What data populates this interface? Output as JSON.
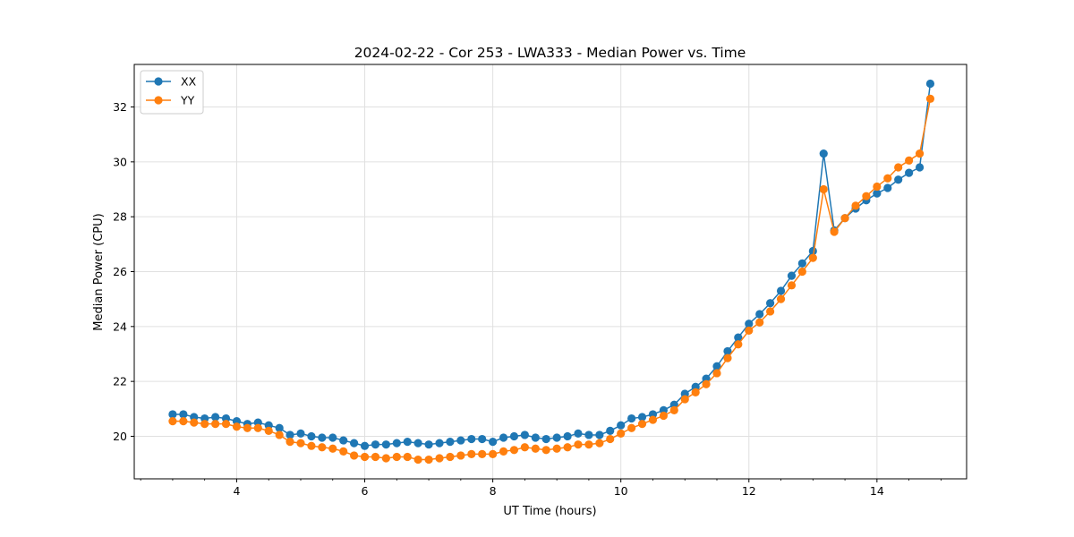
{
  "chart_data": {
    "type": "line",
    "title": "2024-02-22 - Cor 253 - LWA333 - Median Power vs. Time",
    "xlabel": "UT Time (hours)",
    "ylabel": "Median Power (CPU)",
    "xlim": [
      2.4,
      15.4
    ],
    "ylim": [
      18.45,
      33.55
    ],
    "xticks": [
      4,
      6,
      8,
      10,
      12,
      14
    ],
    "yticks": [
      20,
      22,
      24,
      26,
      28,
      30,
      32
    ],
    "grid": true,
    "legend_position": "top-left",
    "x": [
      3.0,
      3.167,
      3.333,
      3.5,
      3.667,
      3.833,
      4.0,
      4.167,
      4.333,
      4.5,
      4.667,
      4.833,
      5.0,
      5.167,
      5.333,
      5.5,
      5.667,
      5.833,
      6.0,
      6.167,
      6.333,
      6.5,
      6.667,
      6.833,
      7.0,
      7.167,
      7.333,
      7.5,
      7.667,
      7.833,
      8.0,
      8.167,
      8.333,
      8.5,
      8.667,
      8.833,
      9.0,
      9.167,
      9.333,
      9.5,
      9.667,
      9.833,
      10.0,
      10.167,
      10.333,
      10.5,
      10.667,
      10.833,
      11.0,
      11.167,
      11.333,
      11.5,
      11.667,
      11.833,
      12.0,
      12.167,
      12.333,
      12.5,
      12.667,
      12.833,
      13.0,
      13.167,
      13.333,
      13.5,
      13.667,
      13.833,
      14.0,
      14.167,
      14.333,
      14.5,
      14.667,
      14.833
    ],
    "series": [
      {
        "name": "XX",
        "color": "#1f77b4",
        "values": [
          20.8,
          20.8,
          20.7,
          20.65,
          20.7,
          20.65,
          20.55,
          20.45,
          20.5,
          20.4,
          20.3,
          20.05,
          20.1,
          20.0,
          19.95,
          19.95,
          19.85,
          19.75,
          19.65,
          19.7,
          19.7,
          19.75,
          19.8,
          19.75,
          19.7,
          19.75,
          19.8,
          19.85,
          19.9,
          19.9,
          19.8,
          19.95,
          20.0,
          20.05,
          19.95,
          19.9,
          19.95,
          20.0,
          20.1,
          20.05,
          20.05,
          20.2,
          20.4,
          20.65,
          20.7,
          20.8,
          20.95,
          21.15,
          21.55,
          21.8,
          22.1,
          22.55,
          23.1,
          23.6,
          24.1,
          24.45,
          24.85,
          25.3,
          25.85,
          26.3,
          26.75,
          30.3,
          27.5,
          27.95,
          28.3,
          28.6,
          28.85,
          29.05,
          29.35,
          29.6,
          29.8,
          32.85
        ]
      },
      {
        "name": "YY",
        "color": "#ff7f0e",
        "values": [
          20.55,
          20.55,
          20.5,
          20.45,
          20.45,
          20.45,
          20.35,
          20.3,
          20.3,
          20.2,
          20.05,
          19.8,
          19.75,
          19.65,
          19.6,
          19.55,
          19.45,
          19.3,
          19.25,
          19.25,
          19.2,
          19.25,
          19.25,
          19.15,
          19.15,
          19.2,
          19.25,
          19.3,
          19.35,
          19.35,
          19.35,
          19.45,
          19.5,
          19.6,
          19.55,
          19.5,
          19.55,
          19.6,
          19.7,
          19.7,
          19.75,
          19.9,
          20.1,
          20.3,
          20.45,
          20.6,
          20.75,
          20.95,
          21.35,
          21.6,
          21.9,
          22.3,
          22.85,
          23.35,
          23.85,
          24.15,
          24.55,
          25.0,
          25.5,
          26.0,
          26.5,
          29.0,
          27.45,
          27.95,
          28.4,
          28.75,
          29.1,
          29.4,
          29.8,
          30.05,
          30.3,
          32.3
        ]
      }
    ]
  }
}
